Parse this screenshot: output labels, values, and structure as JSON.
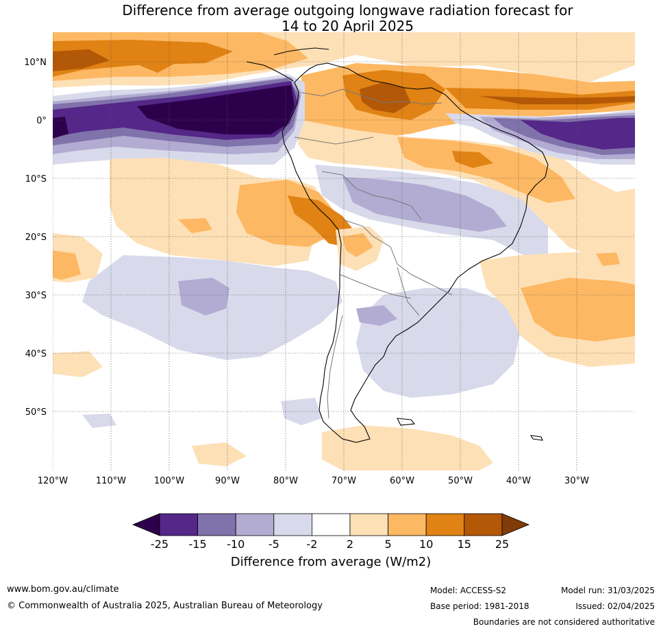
{
  "title": {
    "line1": "Difference from average outgoing longwave radiation forecast for",
    "line2": "14 to 20 April 2025"
  },
  "map": {
    "lat_labels": [
      "10°N",
      "0°",
      "10°S",
      "20°S",
      "30°S",
      "40°S",
      "50°S"
    ],
    "lon_labels": [
      "120°W",
      "110°W",
      "100°W",
      "90°W",
      "80°W",
      "70°W",
      "60°W",
      "50°W",
      "40°W",
      "30°W"
    ],
    "extent": {
      "lon": [
        -120,
        -20
      ],
      "lat": [
        -60,
        15
      ]
    },
    "gridlines": true
  },
  "colorbar": {
    "ticks": [
      "-25",
      "-15",
      "-10",
      "-5",
      "-2",
      "2",
      "5",
      "10",
      "15",
      "25"
    ],
    "colors": [
      "#2d004b",
      "#542788",
      "#8073ac",
      "#b2abd2",
      "#d8daeb",
      "#ffffff",
      "#fee0b6",
      "#fdb863",
      "#e08214",
      "#b35806",
      "#7f3b08"
    ],
    "label": "Difference from average (W/m2)"
  },
  "footer": {
    "website": "www.bom.gov.au/climate",
    "copyright": "© Commonwealth of Australia 2025, Australian Bureau of Meteorology",
    "model": "Model: ACCESS-S2",
    "base_period": "Base period: 1981-2018",
    "model_run": "Model run: 31/03/2025",
    "issued": "Issued: 02/04/2025",
    "disclaimer": "Boundaries are not considered authoritative"
  }
}
